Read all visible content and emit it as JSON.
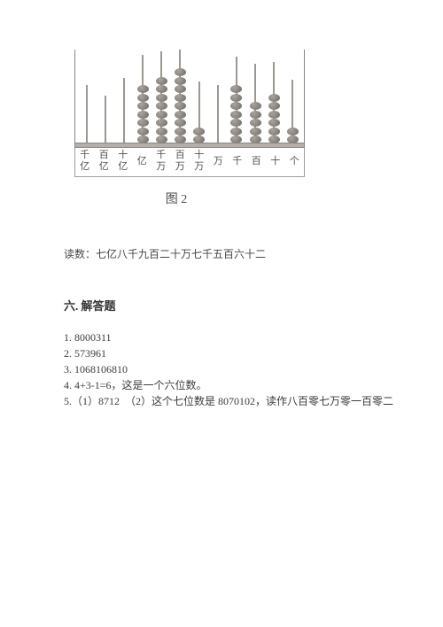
{
  "abacus": {
    "rods": [
      {
        "beads": 0,
        "height": 70
      },
      {
        "beads": 0,
        "height": 58
      },
      {
        "beads": 0,
        "height": 78
      },
      {
        "beads": 7,
        "height": 104
      },
      {
        "beads": 8,
        "height": 108
      },
      {
        "beads": 9,
        "height": 110
      },
      {
        "beads": 2,
        "height": 74
      },
      {
        "beads": 0,
        "height": 70
      },
      {
        "beads": 7,
        "height": 102
      },
      {
        "beads": 5,
        "height": 94
      },
      {
        "beads": 6,
        "height": 96
      },
      {
        "beads": 2,
        "height": 76
      }
    ],
    "labels": [
      "千亿",
      "百亿",
      "十亿",
      "亿",
      "千万",
      "百万",
      "十万",
      "万",
      "千",
      "百",
      "十",
      "个"
    ],
    "caption": "图 2",
    "bead_color_light": "#a9a49d",
    "bead_color_dark": "#6e6a64",
    "border_color": "#8b8682"
  },
  "reading": {
    "prefix": "读数：",
    "text": "七亿八千九百二十万七千五百六十二"
  },
  "section": {
    "title": "六. 解答题",
    "items": [
      "1. 8000311",
      "2. 573961",
      "3. 1068106810",
      "4. 4+3-1=6，这是一个六位数。",
      "5.（1）8712　（2）这个七位数是 8070102，读作八百零七万零一百零二"
    ]
  },
  "colors": {
    "page_bg": "#ffffff",
    "text": "#3a3a3a"
  }
}
